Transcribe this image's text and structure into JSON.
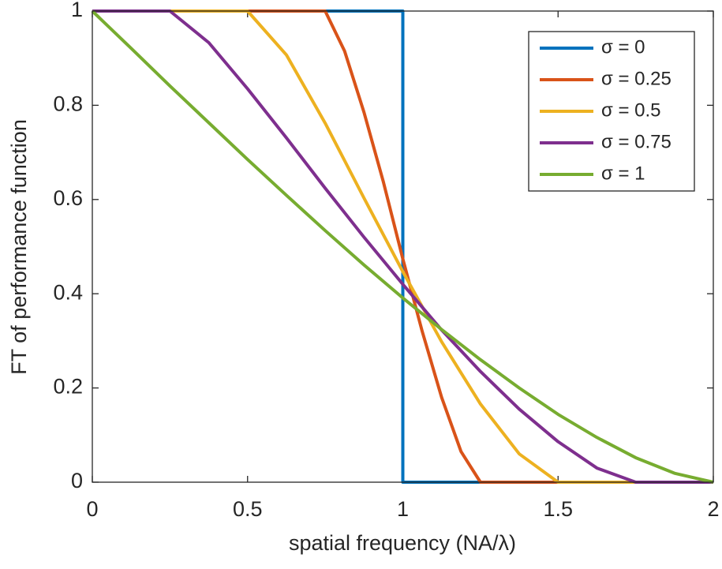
{
  "chart_data": {
    "type": "line",
    "xlabel": "spatial frequency (NA/λ)",
    "ylabel": "FT of performance function",
    "xlim": [
      0,
      2
    ],
    "xticks": [
      0,
      0.5,
      1,
      1.5,
      2
    ],
    "ylim": [
      0,
      1
    ],
    "yticks": [
      0,
      0.2,
      0.4,
      0.6,
      0.8,
      1
    ],
    "legend": "northeast",
    "series": [
      {
        "name": "σ = 0",
        "color": "#0072BD",
        "x": [
          0,
          1,
          1,
          2
        ],
        "values": [
          1,
          1,
          0,
          0
        ]
      },
      {
        "name": "σ = 0.25",
        "color": "#D95319",
        "x": [
          0,
          0.75,
          0.8125,
          0.875,
          0.9375,
          1,
          1.0625,
          1.125,
          1.1875,
          1.25,
          2
        ],
        "values": [
          1,
          1,
          0.915,
          0.785,
          0.637,
          0.474,
          0.32,
          0.18,
          0.065,
          0,
          0
        ]
      },
      {
        "name": "σ = 0.5",
        "color": "#EDB120",
        "x": [
          0,
          0.5,
          0.625,
          0.75,
          0.875,
          1,
          1.125,
          1.25,
          1.375,
          1.5,
          2
        ],
        "values": [
          1,
          1,
          0.907,
          0.762,
          0.603,
          0.447,
          0.298,
          0.166,
          0.06,
          0,
          0
        ]
      },
      {
        "name": "σ = 0.75",
        "color": "#7E2F8E",
        "x": [
          0,
          0.25,
          0.375,
          0.5,
          0.625,
          0.75,
          0.875,
          1,
          1.125,
          1.25,
          1.375,
          1.5,
          1.625,
          1.75,
          2
        ],
        "values": [
          1,
          1,
          0.933,
          0.835,
          0.731,
          0.624,
          0.52,
          0.42,
          0.323,
          0.235,
          0.155,
          0.086,
          0.03,
          0,
          0
        ]
      },
      {
        "name": "σ = 1",
        "color": "#77AC30",
        "x": [
          0,
          0.125,
          0.25,
          0.375,
          0.5,
          0.625,
          0.75,
          0.875,
          1,
          1.125,
          1.25,
          1.375,
          1.5,
          1.625,
          1.75,
          1.875,
          2
        ],
        "values": [
          1,
          0.921,
          0.841,
          0.763,
          0.685,
          0.609,
          0.534,
          0.461,
          0.391,
          0.324,
          0.26,
          0.2,
          0.144,
          0.095,
          0.052,
          0.019,
          0
        ]
      }
    ]
  }
}
